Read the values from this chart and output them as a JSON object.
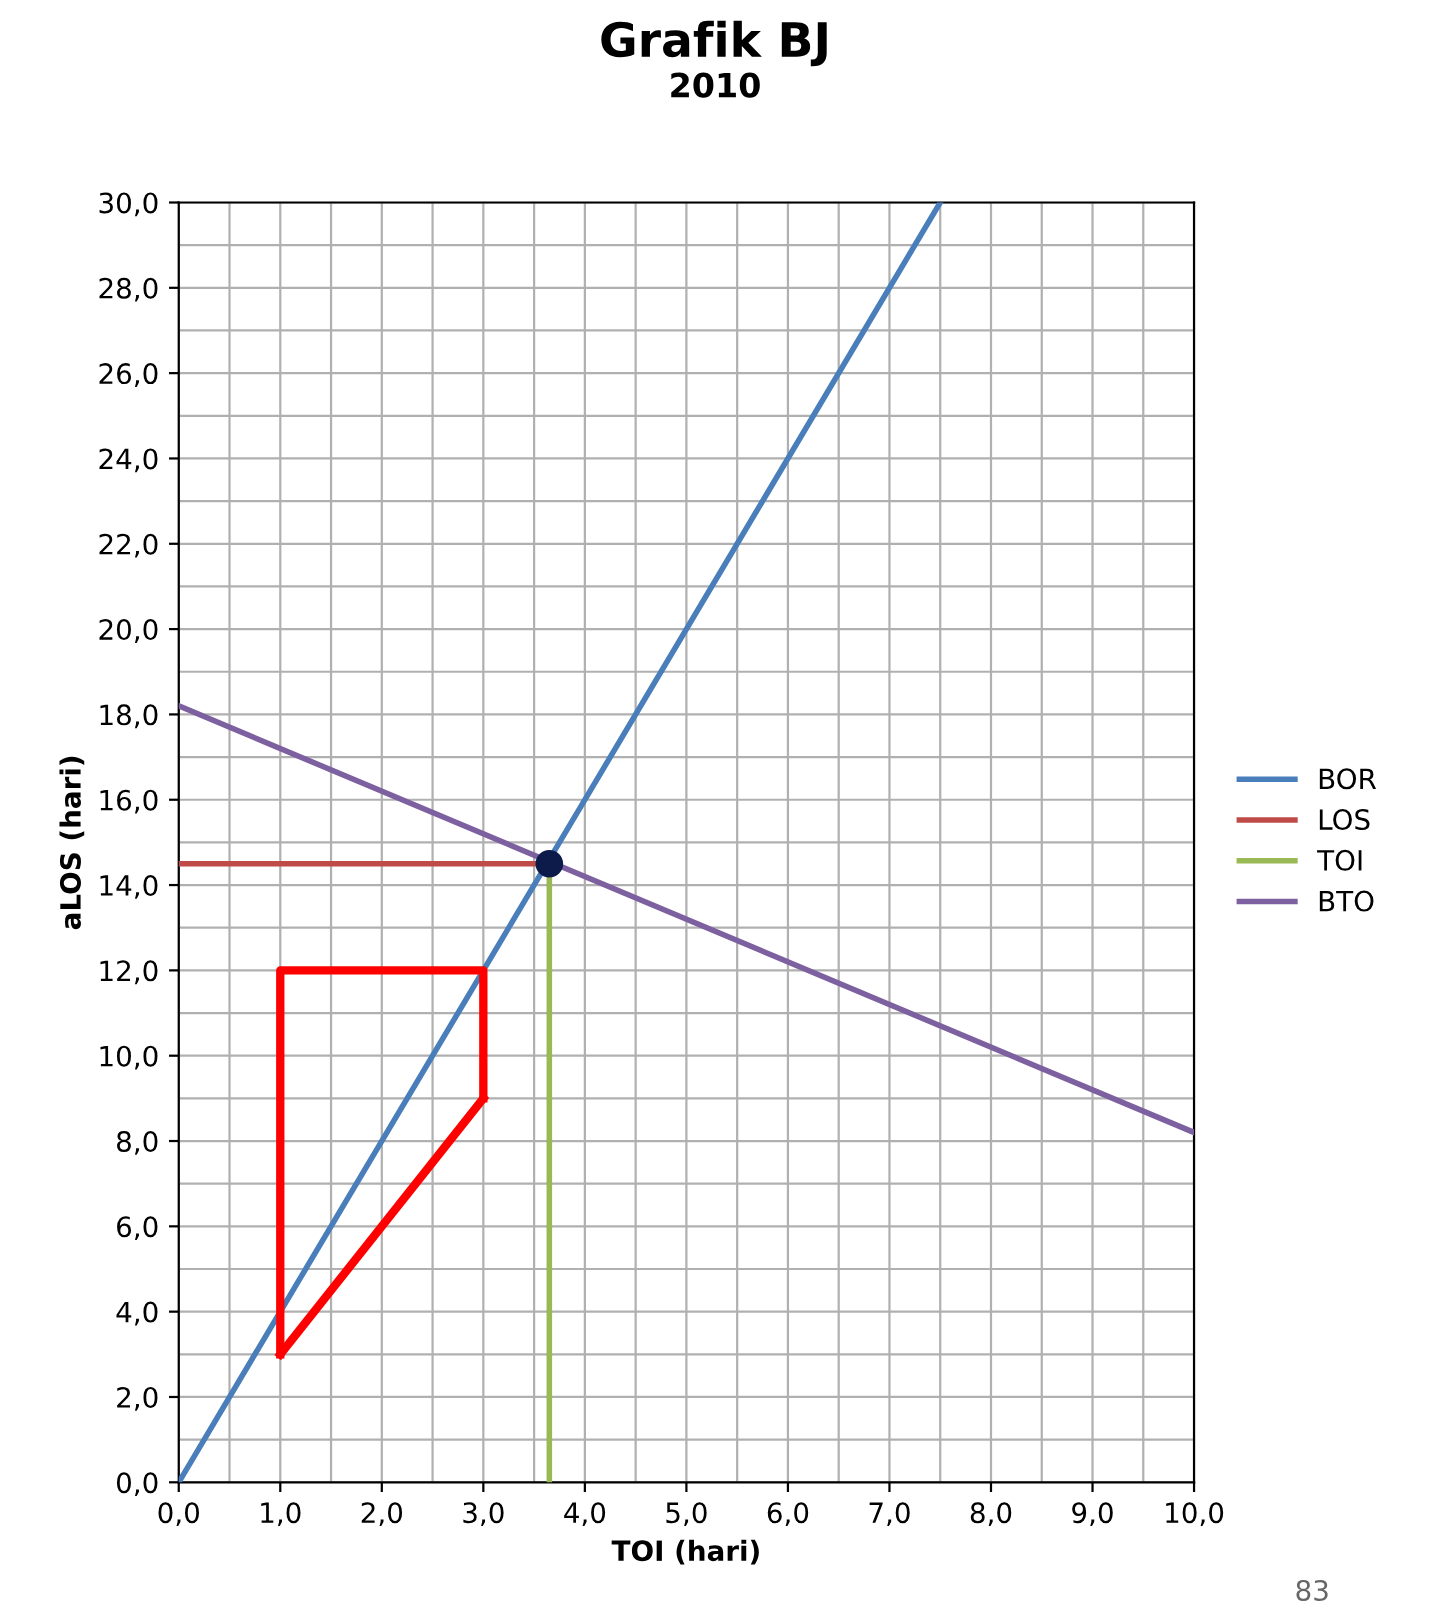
{
  "chart_data": {
    "type": "line",
    "title": "Grafik BJ",
    "subtitle": "2010",
    "xlabel": "TOI (hari)",
    "ylabel": "aLOS (hari)",
    "series": [
      {
        "name": "BOR",
        "color": "#4a7ebb",
        "x": [
          0,
          7.5
        ],
        "values": [
          0,
          30
        ]
      },
      {
        "name": "LOS",
        "color": "#be4b48",
        "x": [
          0,
          3.65
        ],
        "values": [
          14.5,
          14.5
        ]
      },
      {
        "name": "TOI",
        "color": "#98b954",
        "x": [
          3.65,
          3.65
        ],
        "values": [
          0,
          14.5
        ]
      },
      {
        "name": "BTO",
        "color": "#7d60a0",
        "x": [
          0,
          10
        ],
        "values": [
          18.2,
          8.2
        ]
      },
      {
        "type": "line",
        "color": "#ff0000",
        "x": [
          1,
          1,
          3,
          3
        ],
        "values": [
          3,
          12,
          12,
          9
        ]
      },
      {
        "type": "line",
        "color": "#ff0000",
        "x": [
          1,
          3
        ],
        "values": [
          3,
          9
        ]
      },
      {
        "type": "scatter",
        "color": "#0d1b4a",
        "marker": "circle",
        "x": [
          3.65
        ],
        "values": [
          14.5
        ]
      }
    ],
    "xlim": [
      0,
      10
    ],
    "ylim": [
      0,
      30
    ],
    "xticks": [
      {
        "value": 0,
        "label": "0,0"
      },
      {
        "value": 1,
        "label": "1,0"
      },
      {
        "value": 2,
        "label": "2,0"
      },
      {
        "value": 3,
        "label": "3,0"
      },
      {
        "value": 4,
        "label": "4,0"
      },
      {
        "value": 5,
        "label": "5,0"
      },
      {
        "value": 6,
        "label": "6,0"
      },
      {
        "value": 7,
        "label": "7,0"
      },
      {
        "value": 8,
        "label": "8,0"
      },
      {
        "value": 9,
        "label": "9,0"
      },
      {
        "value": 10,
        "label": "10,0"
      }
    ],
    "yticks": [
      {
        "value": 0,
        "label": "0,0"
      },
      {
        "value": 2,
        "label": "2,0"
      },
      {
        "value": 4,
        "label": "4,0"
      },
      {
        "value": 6,
        "label": "6,0"
      },
      {
        "value": 8,
        "label": "8,0"
      },
      {
        "value": 10,
        "label": "10,0"
      },
      {
        "value": 12,
        "label": "12,0"
      },
      {
        "value": 14,
        "label": "14,0"
      },
      {
        "value": 16,
        "label": "16,0"
      },
      {
        "value": 18,
        "label": "18,0"
      },
      {
        "value": 20,
        "label": "20,0"
      },
      {
        "value": 22,
        "label": "22,0"
      },
      {
        "value": 24,
        "label": "24,0"
      },
      {
        "value": 26,
        "label": "26,0"
      },
      {
        "value": 28,
        "label": "28,0"
      },
      {
        "value": 30,
        "label": "30,0"
      }
    ],
    "grid": true,
    "legend": "right",
    "marker": "none",
    "line_style": "solid",
    "annotations": [
      "83"
    ]
  }
}
